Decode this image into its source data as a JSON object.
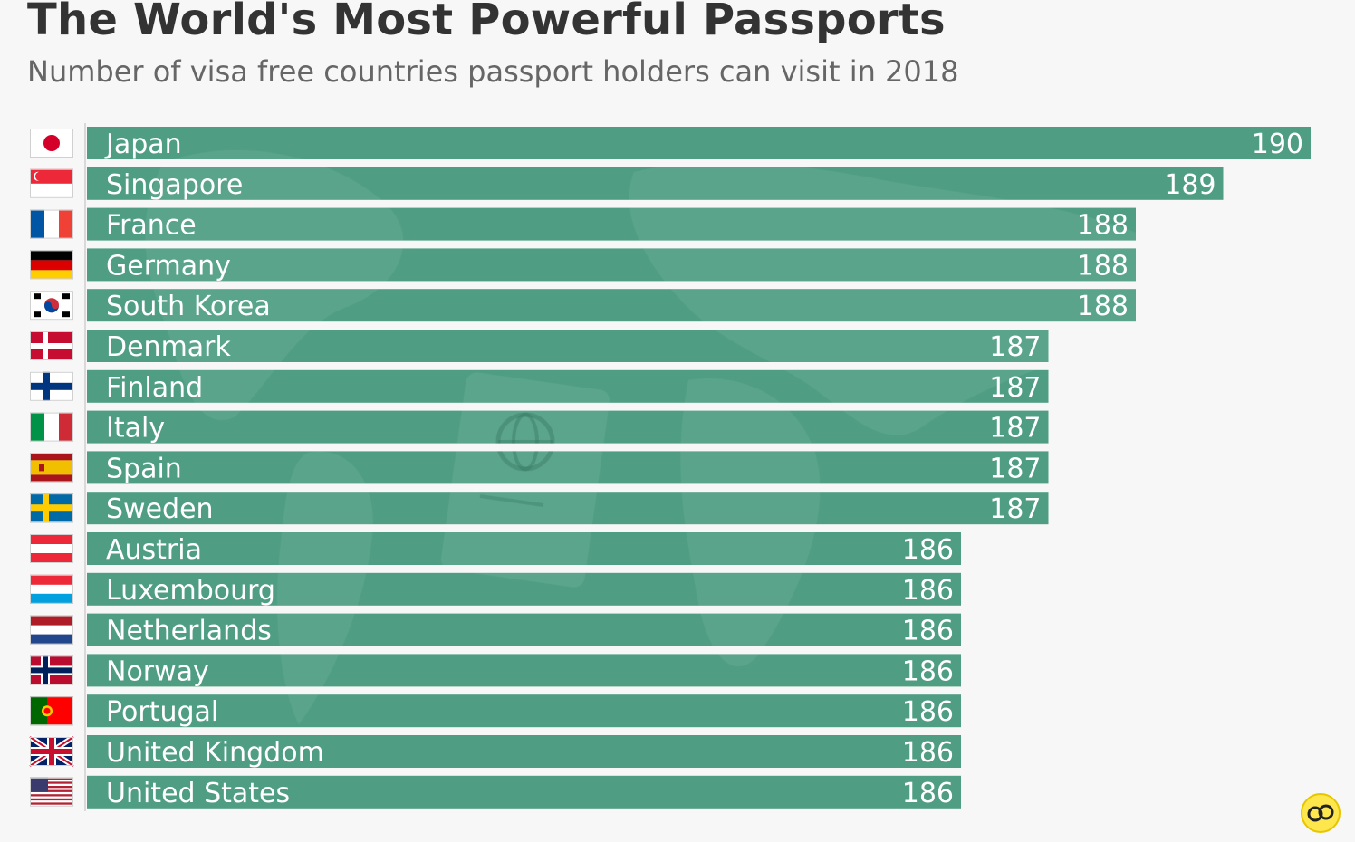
{
  "chart_data": {
    "type": "bar",
    "title": "The World's Most Powerful Passports",
    "subtitle": "Number of visa free countries passport holders can visit in 2018",
    "orientation": "horizontal",
    "categories": [
      "Japan",
      "Singapore",
      "France",
      "Germany",
      "South Korea",
      "Denmark",
      "Finland",
      "Italy",
      "Spain",
      "Sweden",
      "Austria",
      "Luxembourg",
      "Netherlands",
      "Norway",
      "Portugal",
      "United Kingdom",
      "United States"
    ],
    "values": [
      190,
      189,
      188,
      188,
      188,
      187,
      187,
      187,
      187,
      187,
      186,
      186,
      186,
      186,
      186,
      186,
      186
    ],
    "flags": [
      "japan-flag",
      "singapore-flag",
      "france-flag",
      "germany-flag",
      "south-korea-flag",
      "denmark-flag",
      "finland-flag",
      "italy-flag",
      "spain-flag",
      "sweden-flag",
      "austria-flag",
      "luxembourg-flag",
      "netherlands-flag",
      "norway-flag",
      "portugal-flag",
      "united-kingdom-flag",
      "united-states-flag"
    ],
    "xlim": [
      0,
      190
    ],
    "grid": false,
    "legend": "none",
    "bar_color": "#4f9e83",
    "label_color": "#ffffff"
  }
}
